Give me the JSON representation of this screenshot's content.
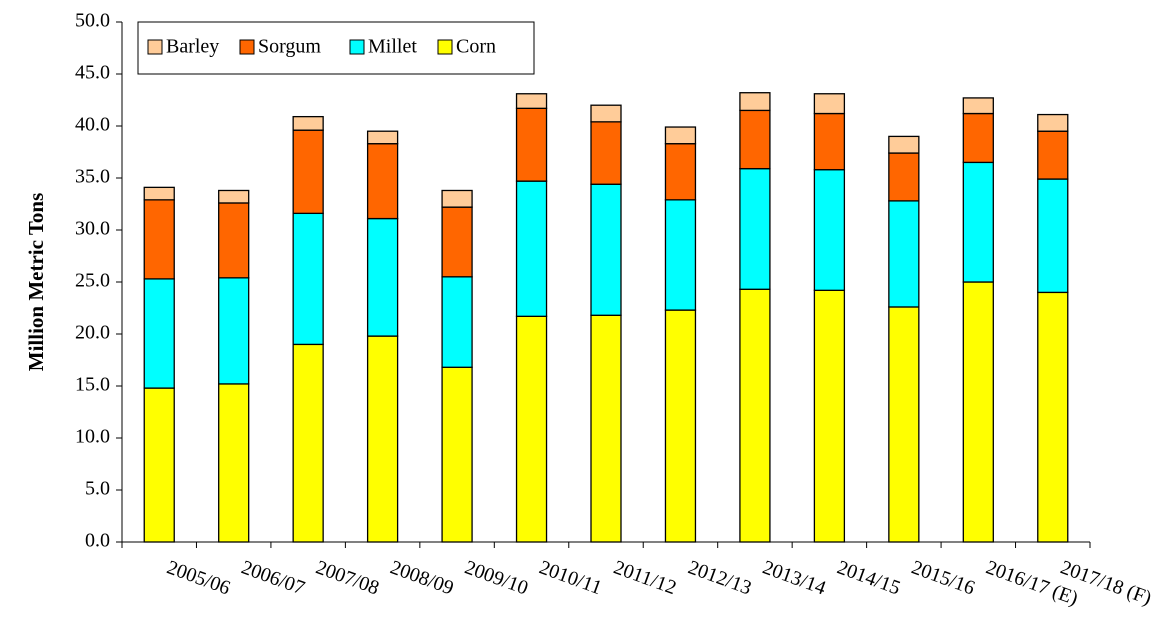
{
  "chart_data": {
    "type": "stacked_bar",
    "y_label": "Million Metric Tons",
    "categories": [
      "2005/06",
      "2006/07",
      "2007/08",
      "2008/09",
      "2009/10",
      "2010/11",
      "2011/12",
      "2012/13",
      "2013/14",
      "2014/15",
      "2015/16",
      "2016/17 (E)",
      "2017/18 (F)"
    ],
    "series": [
      {
        "name": "Corn",
        "color": "#ffff00",
        "values": [
          14.8,
          15.2,
          19.0,
          19.8,
          16.8,
          21.7,
          21.8,
          22.3,
          24.3,
          24.2,
          22.6,
          25.0,
          24.0
        ]
      },
      {
        "name": "Millet",
        "color": "#00ffff",
        "values": [
          10.5,
          10.2,
          12.6,
          11.3,
          8.7,
          13.0,
          12.6,
          10.6,
          11.6,
          11.6,
          10.2,
          11.5,
          10.9
        ]
      },
      {
        "name": "Sorgum",
        "color": "#ff6600",
        "values": [
          7.6,
          7.2,
          8.0,
          7.2,
          6.7,
          7.0,
          6.0,
          5.4,
          5.6,
          5.4,
          4.6,
          4.7,
          4.6
        ]
      },
      {
        "name": "Barley",
        "color": "#ffcc99",
        "values": [
          1.2,
          1.2,
          1.3,
          1.2,
          1.6,
          1.4,
          1.6,
          1.6,
          1.7,
          1.9,
          1.6,
          1.5,
          1.6
        ]
      }
    ],
    "ylim": [
      0,
      50
    ],
    "yticks": [
      {
        "value": 0,
        "label": "0.0"
      },
      {
        "value": 5,
        "label": "5.0"
      },
      {
        "value": 10,
        "label": "10.0"
      },
      {
        "value": 15,
        "label": "15.0"
      },
      {
        "value": 20,
        "label": "20.0"
      },
      {
        "value": 25,
        "label": "25.0"
      },
      {
        "value": 30,
        "label": "30.0"
      },
      {
        "value": 35,
        "label": "35.0"
      },
      {
        "value": 40,
        "label": "40.0"
      },
      {
        "value": 45,
        "label": "45.0"
      },
      {
        "value": 50,
        "label": "50.0"
      }
    ],
    "legend": "top-left"
  }
}
